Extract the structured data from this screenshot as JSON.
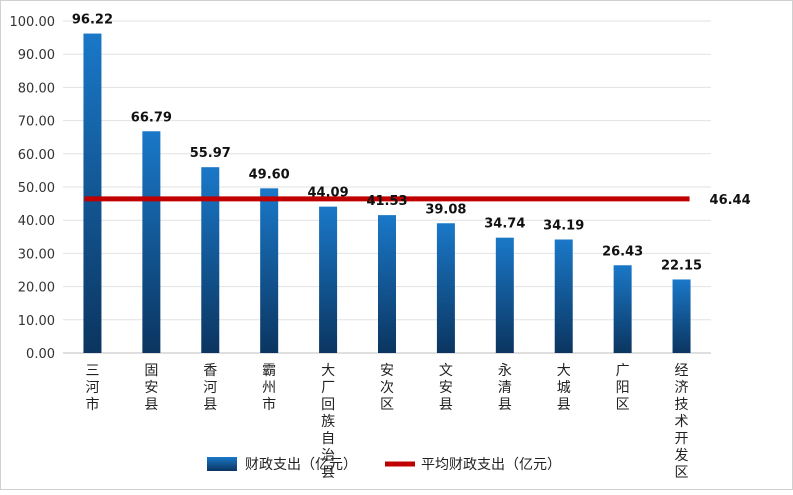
{
  "chart_data": {
    "type": "bar",
    "categories": [
      "三河市",
      "固安县",
      "香河县",
      "霸州市",
      "大厂回族自治县",
      "安次区",
      "文安县",
      "永清县",
      "大城县",
      "广阳区",
      "经济技术开发区"
    ],
    "series": [
      {
        "name": "财政支出（亿元）",
        "type": "bar",
        "values": [
          96.22,
          66.79,
          55.97,
          49.6,
          44.09,
          41.53,
          39.08,
          34.74,
          34.19,
          26.43,
          22.15
        ],
        "value_labels": [
          "96.22",
          "66.79",
          "55.97",
          "49.60",
          "44.09",
          "41.53",
          "39.08",
          "34.74",
          "34.19",
          "26.43",
          "22.15"
        ],
        "color_top": "#1a78c8",
        "color_bottom": "#0b3560"
      },
      {
        "name": "平均财政支出（亿元）",
        "type": "line",
        "value": 46.44,
        "value_label": "46.44",
        "color": "#c00000"
      }
    ],
    "yticks": [
      "0.00",
      "10.00",
      "20.00",
      "30.00",
      "40.00",
      "50.00",
      "60.00",
      "70.00",
      "80.00",
      "90.00",
      "100.00"
    ],
    "ylim": [
      0,
      100
    ],
    "grid": true,
    "legend_position": "bottom"
  }
}
